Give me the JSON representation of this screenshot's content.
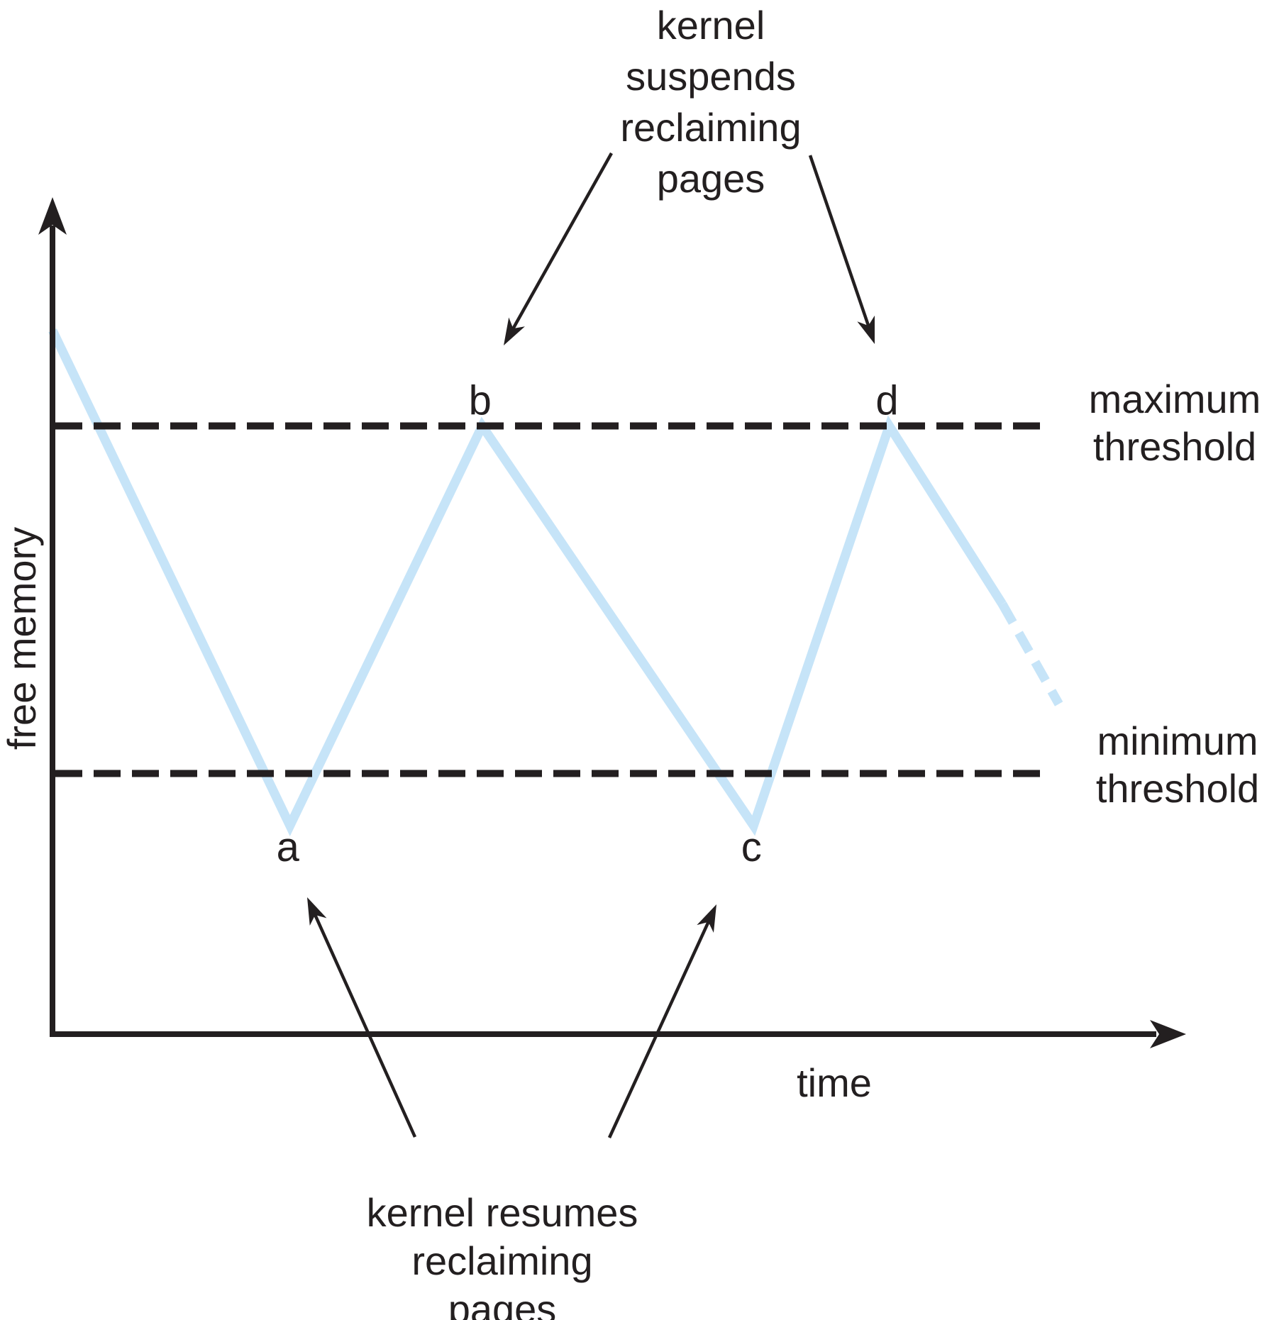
{
  "figure": {
    "background": "#ffffff",
    "ink_color": "#231f20",
    "curve_color": "#c6e4f8"
  },
  "axes": {
    "x_label": "time",
    "y_label": "free memory"
  },
  "thresholds": {
    "maximum": {
      "label": "maximum\nthreshold",
      "value": 70
    },
    "minimum": {
      "label": "minimum\nthreshold",
      "value": 30
    }
  },
  "annotations": {
    "suspend": {
      "text": "kernel suspends\nreclaiming\npages",
      "targets": [
        "b",
        "d"
      ]
    },
    "resume": {
      "text": "kernel resumes\nreclaiming\npages",
      "targets": [
        "a",
        "c"
      ]
    }
  },
  "chart_data": {
    "type": "line",
    "title": "",
    "xlabel": "time",
    "ylabel": "free memory",
    "xlim": [
      0,
      100
    ],
    "ylim": [
      0,
      100
    ],
    "grid": false,
    "legend": "none",
    "axis_ticks": "none (qualitative sketch, unlabeled axes)",
    "thresholds": {
      "maximum": 70,
      "minimum": 30
    },
    "series": [
      {
        "name": "free memory over time",
        "style": "solid",
        "x": [
          0,
          21,
          38,
          62,
          74,
          84
        ],
        "y": [
          81,
          24,
          70,
          24,
          70,
          49.5
        ]
      },
      {
        "name": "projected continuation",
        "style": "dashed",
        "x": [
          84,
          89
        ],
        "y": [
          49.5,
          38
        ]
      }
    ],
    "points": [
      {
        "label": "a",
        "x": 21,
        "y": 24,
        "label_side": "below"
      },
      {
        "label": "b",
        "x": 38,
        "y": 70,
        "label_side": "above"
      },
      {
        "label": "c",
        "x": 62,
        "y": 24,
        "label_side": "below"
      },
      {
        "label": "d",
        "x": 74,
        "y": 70,
        "label_side": "above"
      }
    ]
  }
}
